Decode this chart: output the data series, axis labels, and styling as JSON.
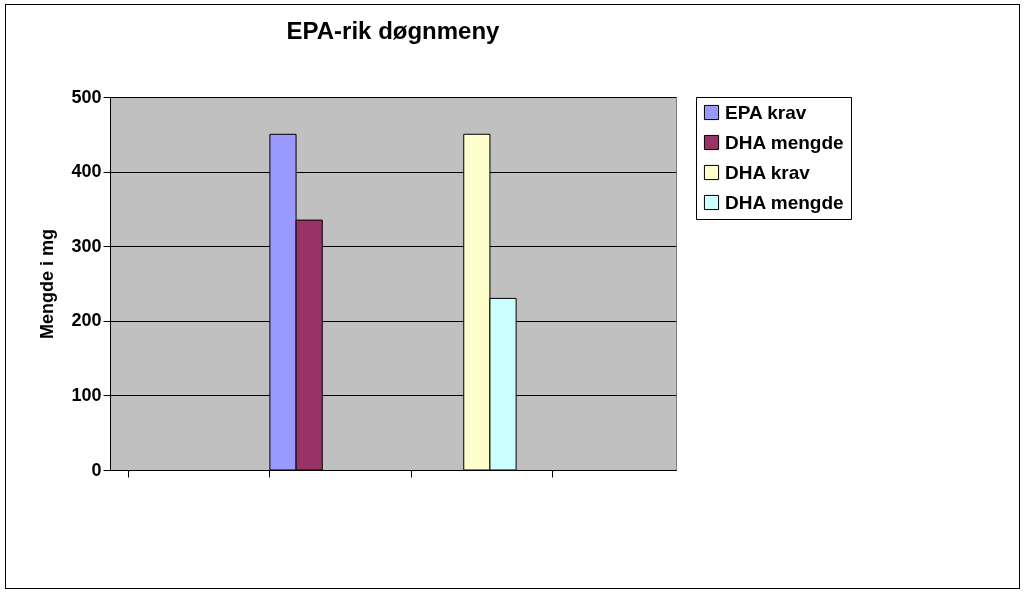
{
  "chart_data": {
    "type": "bar",
    "title": "EPA-rik døgnmeny",
    "ylabel": "Mengde i mg",
    "categories": [
      null,
      null,
      null,
      null
    ],
    "series": [
      {
        "name": "EPA krav",
        "color": "#9999ff",
        "values": [
          null,
          450,
          null,
          null
        ]
      },
      {
        "name": "DHA mengde",
        "color": "#993366",
        "values": [
          null,
          335,
          null,
          null
        ]
      },
      {
        "name": "DHA krav",
        "color": "#ffffcc",
        "values": [
          null,
          null,
          450,
          null
        ]
      },
      {
        "name": "DHA mengde",
        "color": "#ccffff",
        "values": [
          null,
          null,
          230,
          null
        ]
      }
    ],
    "ylim": [
      0,
      500
    ],
    "yticks": [
      0,
      100,
      200,
      300,
      400,
      500
    ],
    "grid": "y",
    "legend": "right"
  }
}
